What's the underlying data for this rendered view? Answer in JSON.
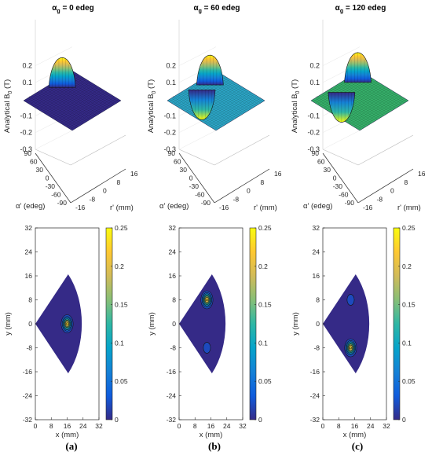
{
  "figure": {
    "panels": [
      {
        "id": "a",
        "caption": "(a)",
        "title_symbol": "α",
        "title_subscript": "g",
        "title_value": " = 0 edeg",
        "alpha_g": 0
      },
      {
        "id": "b",
        "caption": "(b)",
        "title_symbol": "α",
        "title_subscript": "g",
        "title_value": " = 60 edeg",
        "alpha_g": 60
      },
      {
        "id": "c",
        "caption": "(c)",
        "title_symbol": "α",
        "title_subscript": "g",
        "title_value": " = 120 edeg",
        "alpha_g": 120
      }
    ],
    "surface_colors": [
      "#352a87",
      "#2ca5c5",
      "#36b06a"
    ],
    "colormap": [
      "#352a87",
      "#0f5cdd",
      "#1481d6",
      "#06a4ca",
      "#2eb7a4",
      "#87bf77",
      "#d1bb59",
      "#fec832",
      "#f9fb0e"
    ]
  },
  "chart_data": [
    {
      "type": "surface",
      "panel": "a",
      "zlabel": "Analytical B",
      "zlabel_sub": "0",
      "zlabel_unit": " (T)",
      "xlabel": "r' (mm)",
      "ylabel": "α' (edeg)",
      "zlim": [
        -0.3,
        0.25
      ],
      "zticks": [
        "0.2",
        "0.1",
        "0",
        "-0.1",
        "-0.2",
        "-0.3"
      ],
      "xticks": [
        "-16",
        "-8",
        "0",
        "8",
        "16"
      ],
      "yticks": [
        "90",
        "60",
        "30",
        "0",
        "-30",
        "-60",
        "-90"
      ],
      "peaks": [
        {
          "r": 16,
          "alpha": 0,
          "value": 0.25
        }
      ]
    },
    {
      "type": "surface",
      "panel": "b",
      "zlabel": "Analytical B",
      "zlabel_sub": "0",
      "zlabel_unit": " (T)",
      "xlabel": "r' (mm)",
      "ylabel": "α' (edeg)",
      "zlim": [
        -0.3,
        0.25
      ],
      "zticks": [
        "0.2",
        "0.1",
        "0",
        "-0.1",
        "-0.2",
        "-0.3"
      ],
      "xticks": [
        "-16",
        "-8",
        "0",
        "8",
        "16"
      ],
      "yticks": [
        "90",
        "60",
        "30",
        "0",
        "-30",
        "-60",
        "-90"
      ],
      "peaks": [
        {
          "r": 16,
          "alpha": 60,
          "value": 0.25
        },
        {
          "r": 16,
          "alpha": -60,
          "value": -0.25
        }
      ]
    },
    {
      "type": "surface",
      "panel": "c",
      "zlabel": "Analytical B",
      "zlabel_sub": "0",
      "zlabel_unit": " (T)",
      "xlabel": "r' (mm)",
      "ylabel": "α' (edeg)",
      "zlim": [
        -0.3,
        0.25
      ],
      "zticks": [
        "0.2",
        "0.1",
        "0",
        "-0.1",
        "-0.2",
        "-0.3"
      ],
      "xticks": [
        "-16",
        "-8",
        "0",
        "8",
        "16"
      ],
      "yticks": [
        "90",
        "60",
        "30",
        "0",
        "-30",
        "-60",
        "-90"
      ],
      "peaks": [
        {
          "r": 16,
          "alpha": 120,
          "value": 0.25
        },
        {
          "r": 16,
          "alpha": -120,
          "value": -0.25
        }
      ]
    },
    {
      "type": "heatmap",
      "panel": "a",
      "xlabel": "x (mm)",
      "ylabel": "y (mm)",
      "xlim": [
        0,
        32
      ],
      "ylim": [
        -32,
        32
      ],
      "xticks": [
        "0",
        "8",
        "16",
        "24",
        "32"
      ],
      "yticks": [
        "32",
        "24",
        "16",
        "8",
        "0",
        "-8",
        "-16",
        "-24",
        "-32"
      ],
      "colorbar": {
        "min": 0,
        "max": 0.25,
        "ticks": [
          "0.25",
          "0.2",
          "0.15",
          "0.1",
          "0.05",
          "0"
        ]
      },
      "domain": {
        "r_max": 32,
        "half_angle_deg": 45
      },
      "hotspots": [
        {
          "x": 16,
          "y": 0,
          "value": 0.25
        }
      ]
    },
    {
      "type": "heatmap",
      "panel": "b",
      "xlabel": "x (mm)",
      "ylabel": "y (mm)",
      "xlim": [
        0,
        32
      ],
      "ylim": [
        -32,
        32
      ],
      "xticks": [
        "0",
        "8",
        "16",
        "24",
        "32"
      ],
      "yticks": [
        "32",
        "24",
        "16",
        "8",
        "0",
        "-8",
        "-16",
        "-24",
        "-32"
      ],
      "colorbar": {
        "min": 0,
        "max": 0.25,
        "ticks": [
          "0.25",
          "0.2",
          "0.15",
          "0.1",
          "0.05",
          "0"
        ]
      },
      "domain": {
        "r_max": 32,
        "half_angle_deg": 45
      },
      "hotspots": [
        {
          "x": 14,
          "y": 8,
          "value": 0.25
        },
        {
          "x": 14,
          "y": -8,
          "value": 0.05
        }
      ]
    },
    {
      "type": "heatmap",
      "panel": "c",
      "xlabel": "x (mm)",
      "ylabel": "y (mm)",
      "xlim": [
        0,
        32
      ],
      "ylim": [
        -32,
        32
      ],
      "xticks": [
        "0",
        "8",
        "16",
        "24",
        "32"
      ],
      "yticks": [
        "32",
        "24",
        "16",
        "8",
        "0",
        "-8",
        "-16",
        "-24",
        "-32"
      ],
      "colorbar": {
        "min": 0,
        "max": 0.25,
        "ticks": [
          "0.25",
          "0.2",
          "0.15",
          "0.1",
          "0.05",
          "0"
        ]
      },
      "domain": {
        "r_max": 32,
        "half_angle_deg": 45
      },
      "hotspots": [
        {
          "x": 14,
          "y": -8,
          "value": 0.25
        },
        {
          "x": 14,
          "y": 8,
          "value": 0.05
        }
      ]
    }
  ]
}
